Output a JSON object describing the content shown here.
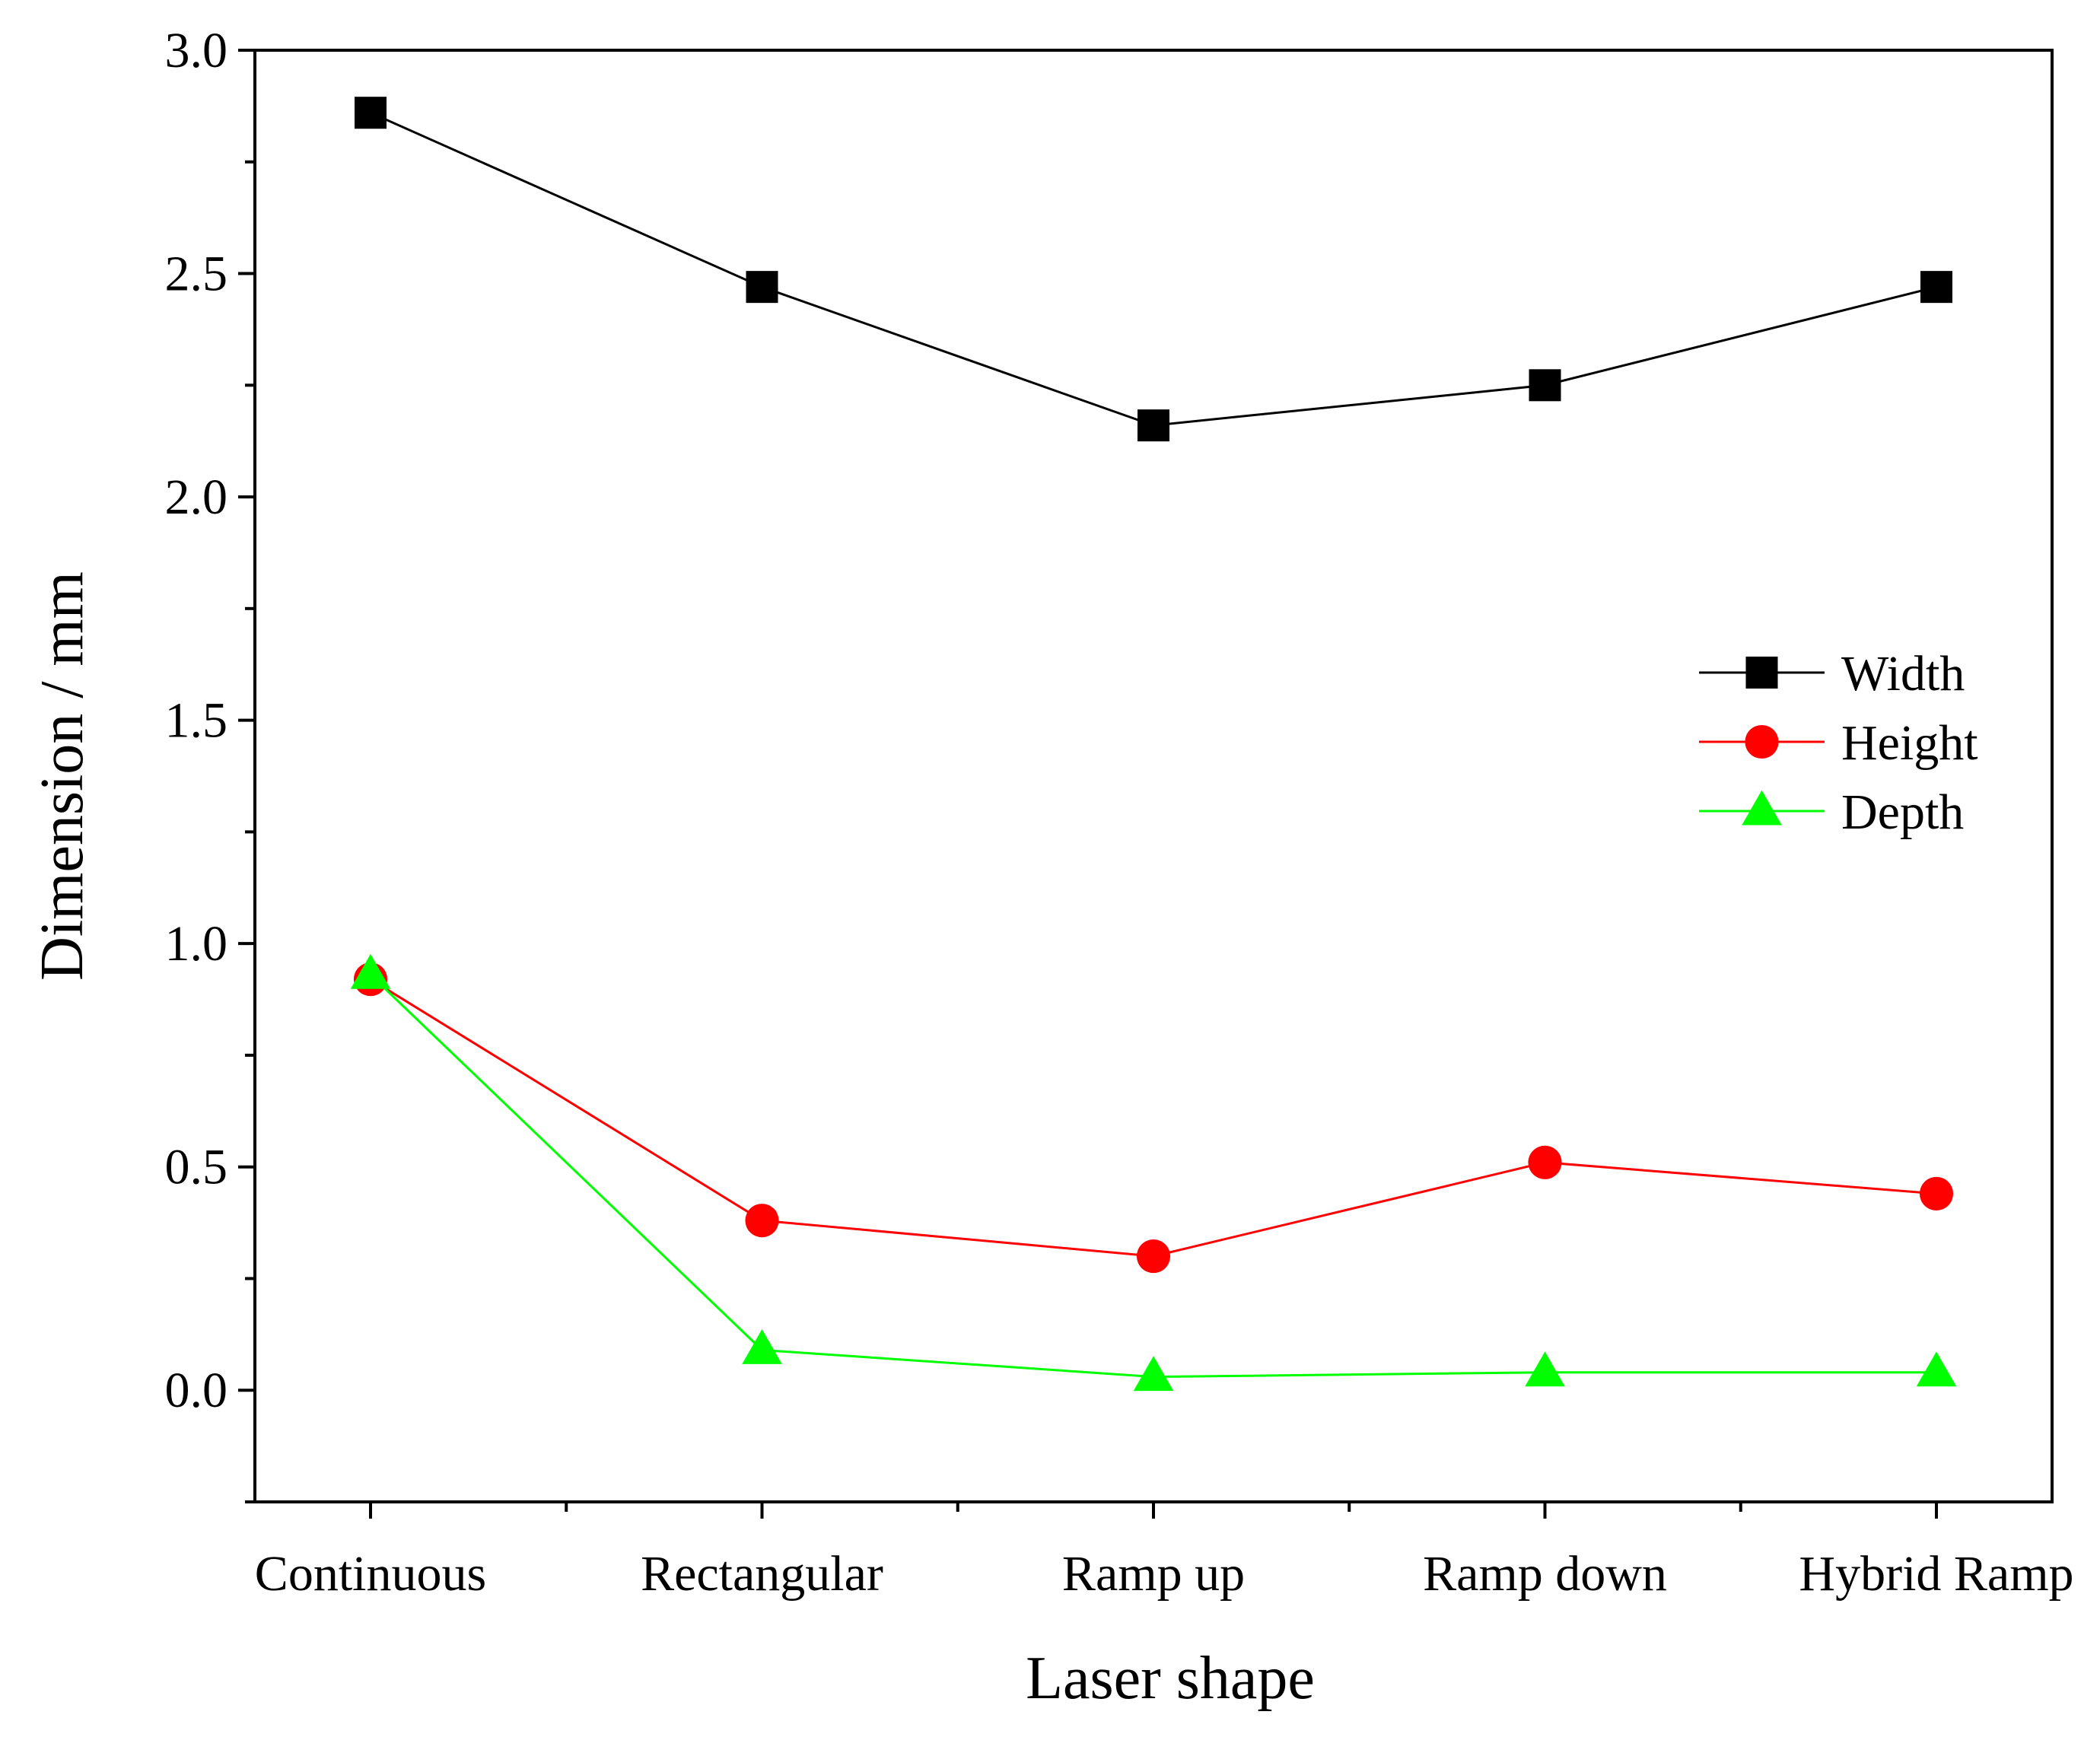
{
  "chart_data": {
    "type": "line",
    "title": "",
    "xlabel": "Laser shape",
    "ylabel": "Dimension / mm",
    "categories": [
      "Continuous",
      "Rectangular",
      "Ramp up",
      "Ramp down",
      "Hybrid Ramp"
    ],
    "ylim": [
      -0.25,
      3.0
    ],
    "yticks": [
      0.0,
      0.5,
      1.0,
      1.5,
      2.0,
      2.5,
      3.0
    ],
    "ytick_labels": [
      "0.0",
      "0.5",
      "1.0",
      "1.5",
      "2.0",
      "2.5",
      "3.0"
    ],
    "grid": false,
    "legend_position": "center-right",
    "series": [
      {
        "name": "Width",
        "marker": "square",
        "color": "#000000",
        "values": [
          2.86,
          2.47,
          2.16,
          2.25,
          2.47
        ]
      },
      {
        "name": "Height",
        "marker": "circle",
        "color": "#ff0000",
        "values": [
          0.92,
          0.38,
          0.3,
          0.51,
          0.44
        ]
      },
      {
        "name": "Depth",
        "marker": "triangle",
        "color": "#00ff00",
        "values": [
          0.93,
          0.09,
          0.03,
          0.04,
          0.04
        ]
      }
    ]
  }
}
